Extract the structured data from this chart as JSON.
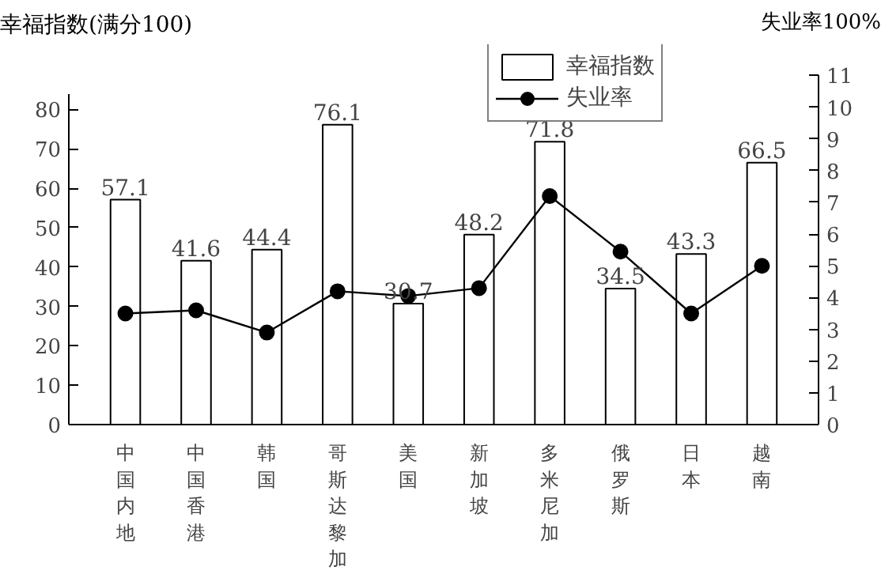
{
  "chart_data": {
    "type": "bar",
    "categories": [
      "中国内地",
      "中国香港",
      "韩国",
      "哥斯达黎加",
      "美国",
      "新加坡",
      "多米尼加",
      "俄罗斯",
      "日本",
      "越南"
    ],
    "ylabel": "幸福指数(满分100)",
    "y2label": "失业率100%",
    "series": [
      {
        "name": "幸福指数",
        "color": "#ffffff",
        "values": [
          57.1,
          41.6,
          44.4,
          76.1,
          30.7,
          48.2,
          71.8,
          34.5,
          43.3,
          66.5
        ],
        "data_labels": true
      },
      {
        "name": "失业率",
        "type": "line",
        "axis": "y2",
        "color": "#000000",
        "marker": "circle",
        "values": [
          3.5,
          3.6,
          2.9,
          4.2,
          4.05,
          4.3,
          7.2,
          5.45,
          3.5,
          5.0
        ]
      }
    ],
    "ylim": [
      0,
      84
    ],
    "yticks": [
      0,
      10,
      20,
      30,
      40,
      50,
      60,
      70,
      80
    ],
    "y2lim": [
      0,
      11
    ],
    "y2ticks": [
      0,
      1,
      2,
      3,
      4,
      5,
      6,
      7,
      8,
      9,
      10,
      11
    ],
    "legend": "top",
    "grid": false
  }
}
